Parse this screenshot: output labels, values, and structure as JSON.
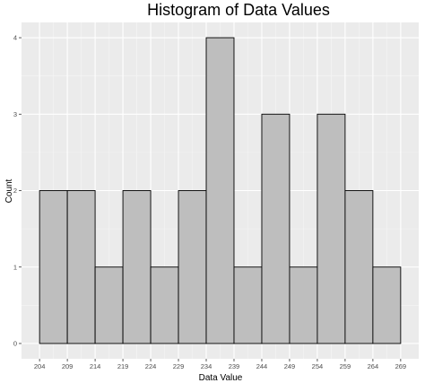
{
  "chart_data": {
    "type": "bar",
    "title": "Histogram of Data Values",
    "xlabel": "Data Value",
    "ylabel": "Count",
    "bin_edges": [
      204,
      209,
      214,
      219,
      224,
      229,
      234,
      239,
      244,
      249,
      254,
      259,
      264,
      269
    ],
    "values": [
      2,
      2,
      1,
      2,
      1,
      2,
      4,
      1,
      3,
      1,
      3,
      2,
      1
    ],
    "x_ticks": [
      "204",
      "209",
      "214",
      "219",
      "224",
      "229",
      "234",
      "239",
      "244",
      "249",
      "254",
      "259",
      "264",
      "269"
    ],
    "y_ticks": [
      "0",
      "1",
      "2",
      "3",
      "4"
    ],
    "xlim": [
      200.75,
      272.25
    ],
    "ylim": [
      -0.2,
      4.2
    ],
    "grid": true,
    "colors": {
      "panel_background": "#ebebeb",
      "grid_major": "#ffffff",
      "grid_minor": "#f5f5f5",
      "bar_fill": "#bebebe",
      "bar_outline": "#000000",
      "tick_text": "#4d4d4d"
    }
  }
}
